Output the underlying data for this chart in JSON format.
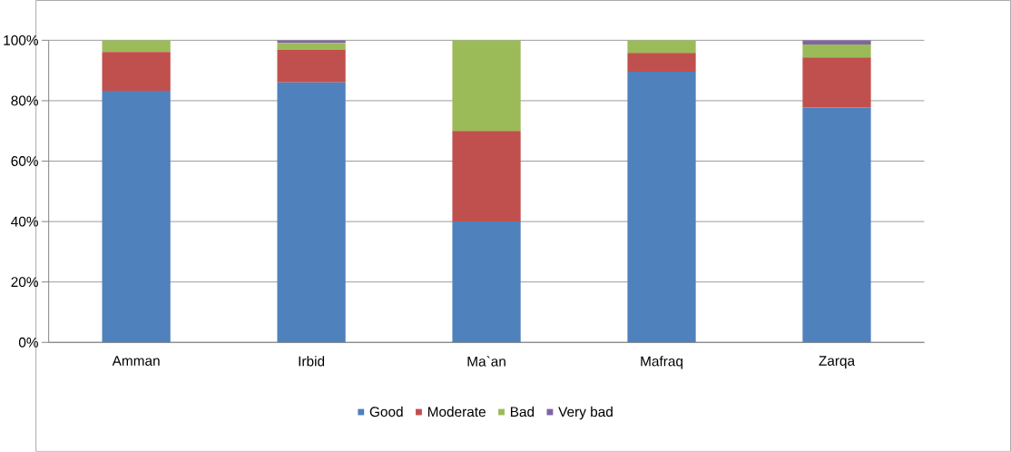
{
  "chart_data": {
    "type": "bar",
    "stacked": true,
    "categories": [
      "Amman",
      "Irbid",
      "Ma`an",
      "Mafraq",
      "Zarqa"
    ],
    "series": [
      {
        "name": "Good",
        "color": "#4f81bd",
        "values": [
          83.3,
          86.1,
          40,
          89.6,
          77.7
        ]
      },
      {
        "name": "Moderate",
        "color": "#c0504d",
        "values": [
          12.8,
          10.7,
          30,
          6.2,
          16.6
        ]
      },
      {
        "name": "Bad",
        "color": "#9bbb59",
        "values": [
          3.9,
          2.3,
          30,
          4.2,
          4.3
        ]
      },
      {
        "name": "Very bad",
        "color": "#8064a2",
        "values": [
          0,
          0.9,
          0,
          0,
          1.4
        ]
      }
    ],
    "ylim": [
      0,
      100
    ],
    "yticks": [
      {
        "value": 0,
        "label": "0%"
      },
      {
        "value": 20,
        "label": "20%"
      },
      {
        "value": 40,
        "label": "40%"
      },
      {
        "value": 60,
        "label": "60%"
      },
      {
        "value": 80,
        "label": "80%"
      },
      {
        "value": 100,
        "label": "100%"
      }
    ],
    "grid": "y",
    "legend": "bottom"
  }
}
